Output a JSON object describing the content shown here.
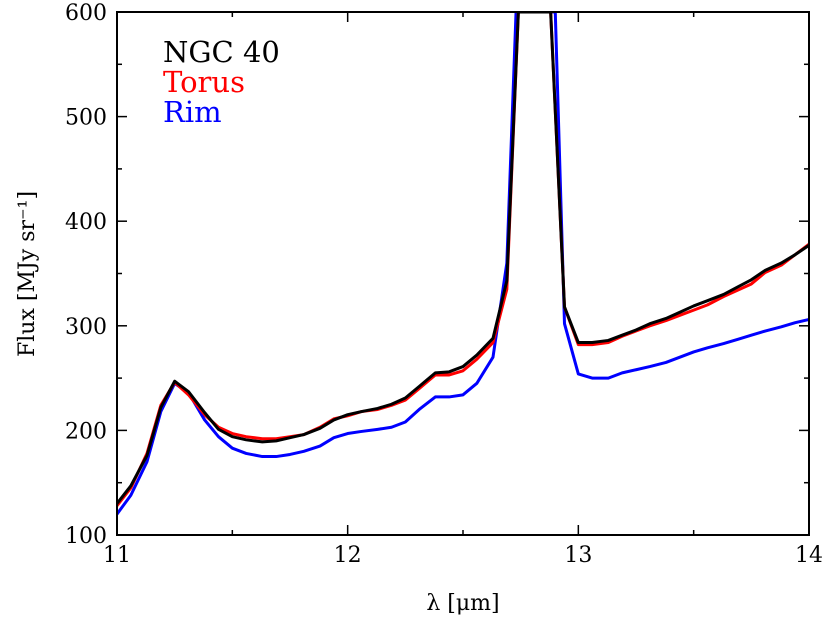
{
  "chart_data": {
    "type": "line",
    "title": "",
    "xlabel": "λ [μm]",
    "ylabel": "Flux [MJy sr⁻¹]",
    "xlim": [
      11,
      14
    ],
    "ylim": [
      100,
      600
    ],
    "xticks": [
      11,
      12,
      13,
      14
    ],
    "yticks": [
      100,
      200,
      300,
      400,
      500,
      600
    ],
    "grid": false,
    "legend_position": "top-left",
    "series": [
      {
        "name": "Rim",
        "color": "#0000ff",
        "x": [
          11.0,
          11.06,
          11.13,
          11.19,
          11.25,
          11.31,
          11.38,
          11.44,
          11.5,
          11.56,
          11.63,
          11.69,
          11.75,
          11.81,
          11.88,
          11.94,
          12.0,
          12.06,
          12.13,
          12.19,
          12.25,
          12.31,
          12.38,
          12.44,
          12.5,
          12.56,
          12.63,
          12.69,
          12.73,
          12.9,
          12.94,
          13.0,
          13.06,
          13.13,
          13.19,
          13.25,
          13.31,
          13.38,
          13.44,
          13.5,
          13.56,
          13.63,
          13.69,
          13.75,
          13.81,
          13.88,
          13.94,
          14.0
        ],
        "y": [
          120,
          138,
          170,
          218,
          245,
          236,
          210,
          194,
          183,
          178,
          175,
          175,
          177,
          180,
          185,
          193,
          197,
          199,
          201,
          203,
          208,
          220,
          232,
          232,
          234,
          245,
          270,
          360,
          600,
          600,
          302,
          254,
          250,
          250,
          255,
          258,
          261,
          265,
          270,
          275,
          279,
          283,
          287,
          291,
          295,
          299,
          303,
          306
        ]
      },
      {
        "name": "Torus",
        "color": "#ff0000",
        "x": [
          11.0,
          11.06,
          11.13,
          11.19,
          11.25,
          11.31,
          11.38,
          11.44,
          11.5,
          11.56,
          11.63,
          11.69,
          11.75,
          11.81,
          11.88,
          11.94,
          12.0,
          12.06,
          12.13,
          12.19,
          12.25,
          12.31,
          12.38,
          12.44,
          12.5,
          12.56,
          12.63,
          12.69,
          12.74,
          12.88,
          12.94,
          13.0,
          13.06,
          13.13,
          13.19,
          13.25,
          13.31,
          13.38,
          13.44,
          13.5,
          13.56,
          13.63,
          13.69,
          13.75,
          13.81,
          13.88,
          13.94,
          14.0
        ],
        "y": [
          128,
          145,
          178,
          224,
          246,
          234,
          215,
          203,
          197,
          194,
          192,
          192,
          194,
          196,
          203,
          211,
          214,
          218,
          220,
          224,
          229,
          240,
          253,
          253,
          257,
          268,
          284,
          335,
          600,
          600,
          318,
          282,
          282,
          284,
          290,
          295,
          300,
          305,
          310,
          315,
          320,
          328,
          334,
          340,
          351,
          358,
          368,
          378
        ]
      },
      {
        "name": "NGC 40",
        "color": "#000000",
        "x": [
          11.0,
          11.06,
          11.13,
          11.19,
          11.25,
          11.31,
          11.38,
          11.44,
          11.5,
          11.56,
          11.63,
          11.69,
          11.75,
          11.81,
          11.88,
          11.94,
          12.0,
          12.06,
          12.13,
          12.19,
          12.25,
          12.31,
          12.38,
          12.44,
          12.5,
          12.56,
          12.63,
          12.69,
          12.74,
          12.88,
          12.94,
          13.0,
          13.06,
          13.13,
          13.19,
          13.25,
          13.31,
          13.38,
          13.44,
          13.5,
          13.56,
          13.63,
          13.69,
          13.75,
          13.81,
          13.88,
          13.94,
          14.0
        ],
        "y": [
          130,
          147,
          176,
          222,
          247,
          237,
          217,
          201,
          194,
          191,
          189,
          190,
          193,
          196,
          202,
          210,
          215,
          218,
          221,
          225,
          231,
          242,
          255,
          256,
          261,
          272,
          288,
          343,
          600,
          600,
          318,
          284,
          284,
          286,
          291,
          296,
          302,
          307,
          313,
          319,
          324,
          330,
          337,
          344,
          353,
          360,
          368,
          377
        ]
      }
    ],
    "legend": [
      {
        "label": "NGC 40",
        "color": "#000000"
      },
      {
        "label": "Torus",
        "color": "#ff0000"
      },
      {
        "label": "Rim",
        "color": "#0000ff"
      }
    ]
  }
}
